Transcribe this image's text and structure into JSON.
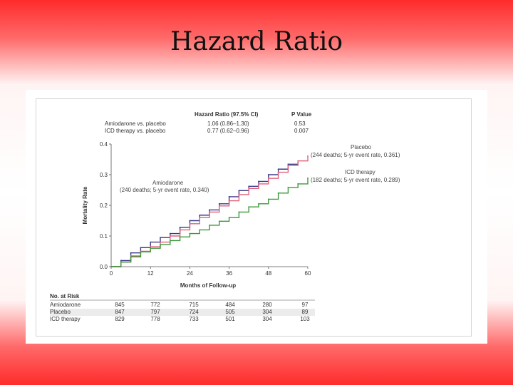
{
  "slide": {
    "title": "Hazard Ratio"
  },
  "legend_table": {
    "header_hr": "Hazard Ratio (97.5% CI)",
    "header_p": "P Value",
    "rows": [
      {
        "label": "Amiodarone vs. placebo",
        "hr": "1.06 (0.86–1.30)",
        "p": "0.53"
      },
      {
        "label": "ICD therapy vs. placebo",
        "hr": "0.77 (0.62–0.96)",
        "p": "0.007"
      }
    ]
  },
  "annotations": {
    "placebo_name": "Placebo",
    "placebo_detail": "(244 deaths; 5-yr event rate, 0.361)",
    "icd_name": "ICD therapy",
    "icd_detail": "(182 deaths; 5-yr event rate, 0.289)",
    "amio_name": "Amiodarone",
    "amio_detail": "(240 deaths; 5-yr event rate, 0.340)"
  },
  "risk_table": {
    "title": "No. at Risk",
    "rows": [
      {
        "label": "Amiodarone",
        "values": [
          "845",
          "772",
          "715",
          "484",
          "280",
          "97"
        ]
      },
      {
        "label": "Placebo",
        "values": [
          "847",
          "797",
          "724",
          "505",
          "304",
          "89"
        ]
      },
      {
        "label": "ICD therapy",
        "values": [
          "829",
          "778",
          "733",
          "501",
          "304",
          "103"
        ]
      }
    ]
  },
  "chart_data": {
    "type": "line",
    "xlabel": "Months of Follow-up",
    "ylabel": "Mortality Rate",
    "xlim": [
      0,
      60
    ],
    "ylim": [
      0,
      0.4
    ],
    "xticks": [
      "0",
      "12",
      "24",
      "36",
      "48",
      "60"
    ],
    "yticks": [
      "0.0",
      "0.1",
      "0.2",
      "0.3",
      "0.4"
    ],
    "grid": false,
    "series": [
      {
        "name": "Amiodarone",
        "color": "#3a3a8c",
        "x": [
          0,
          3,
          6,
          9,
          12,
          15,
          18,
          21,
          24,
          27,
          30,
          33,
          36,
          39,
          42,
          45,
          48,
          51,
          54,
          57
        ],
        "y": [
          0,
          0.02,
          0.045,
          0.062,
          0.08,
          0.095,
          0.108,
          0.128,
          0.15,
          0.168,
          0.185,
          0.205,
          0.228,
          0.248,
          0.262,
          0.278,
          0.3,
          0.318,
          0.334,
          0.34
        ]
      },
      {
        "name": "Placebo",
        "color": "#e0607a",
        "x": [
          0,
          3,
          6,
          9,
          12,
          15,
          18,
          21,
          24,
          27,
          30,
          33,
          36,
          39,
          42,
          45,
          48,
          51,
          54,
          57,
          60
        ],
        "y": [
          0,
          0.015,
          0.035,
          0.05,
          0.065,
          0.08,
          0.1,
          0.12,
          0.14,
          0.16,
          0.178,
          0.198,
          0.215,
          0.235,
          0.255,
          0.27,
          0.288,
          0.308,
          0.33,
          0.345,
          0.361
        ]
      },
      {
        "name": "ICD therapy",
        "color": "#3a9a3a",
        "x": [
          0,
          3,
          6,
          9,
          12,
          15,
          18,
          21,
          24,
          27,
          30,
          33,
          36,
          39,
          42,
          45,
          48,
          51,
          54,
          57,
          60
        ],
        "y": [
          0,
          0.015,
          0.032,
          0.048,
          0.06,
          0.072,
          0.085,
          0.097,
          0.108,
          0.12,
          0.135,
          0.148,
          0.16,
          0.178,
          0.195,
          0.205,
          0.22,
          0.24,
          0.258,
          0.27,
          0.289
        ]
      }
    ]
  }
}
